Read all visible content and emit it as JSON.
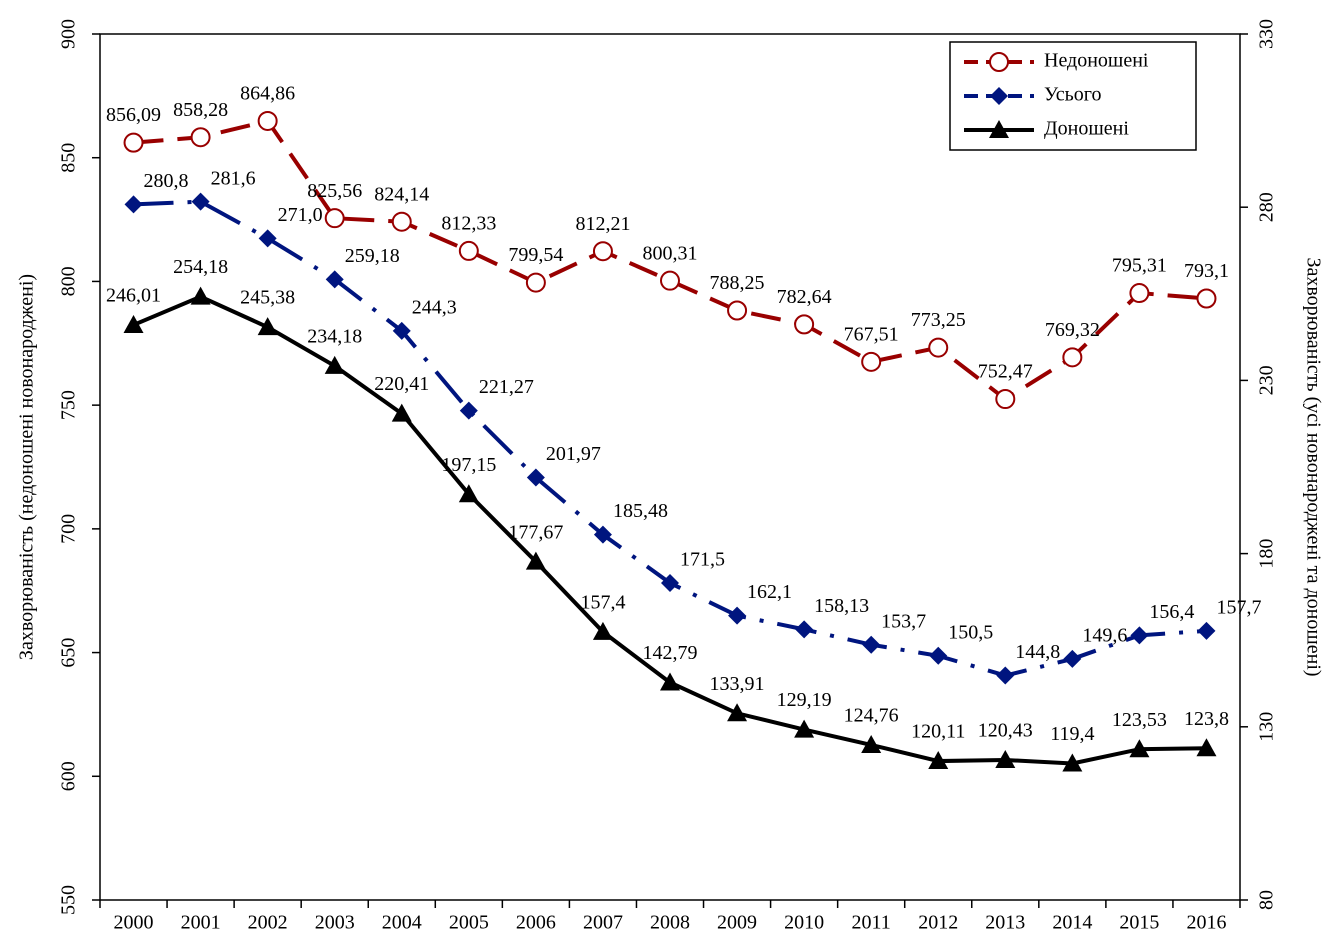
{
  "chart_data": {
    "type": "line",
    "categories": [
      "2000",
      "2001",
      "2002",
      "2003",
      "2004",
      "2005",
      "2006",
      "2007",
      "2008",
      "2009",
      "2010",
      "2011",
      "2012",
      "2013",
      "2014",
      "2015",
      "2016"
    ],
    "ylabel": "Захворюваність (недоношені новонароджені)",
    "y2label": "Захворюваність (усі новонароджені та доношені)",
    "ylim": [
      550,
      900
    ],
    "yticks": [
      550,
      600,
      650,
      700,
      750,
      800,
      850,
      900
    ],
    "y2lim": [
      80,
      330
    ],
    "y2ticks": [
      80,
      130,
      180,
      230,
      280,
      330
    ],
    "legend": "upper right",
    "series": [
      {
        "name": "Недоношені",
        "color": "#990000",
        "marker": "circle",
        "dash": "30,14",
        "values": [
          856.09,
          858.28,
          864.86,
          825.56,
          824.14,
          812.33,
          799.54,
          812.21,
          800.31,
          788.25,
          782.64,
          767.51,
          773.25,
          752.47,
          769.32,
          795.31,
          793.1
        ],
        "value_labels": [
          "856,09",
          "858,28",
          "864,86",
          "825,56",
          "824,14",
          "812,33",
          "799,54",
          "812,21",
          "800,31",
          "788,25",
          "782,64",
          "767,51",
          "773,25",
          "752,47",
          "769,32",
          "795,31",
          "793,1"
        ]
      },
      {
        "name": "Усього",
        "color": "#00157f",
        "marker": "diamond",
        "dash": "40,14,4,14",
        "axis": "y2",
        "values": [
          280.8,
          281.6,
          271.0,
          259.18,
          244.3,
          221.27,
          201.97,
          185.48,
          171.5,
          162.1,
          158.13,
          153.7,
          150.5,
          144.8,
          149.6,
          156.4,
          157.7
        ],
        "value_labels": [
          "280,8",
          "281,6",
          "271,0",
          "259,18",
          "244,3",
          "221,27",
          "201,97",
          "185,48",
          "171,5",
          "162,1",
          "158,13",
          "153,7",
          "150,5",
          "144,8",
          "149,6",
          "156,4",
          "157,7"
        ]
      },
      {
        "name": "Доношені",
        "color": "#000000",
        "marker": "triangle",
        "axis": "y2",
        "values": [
          246.01,
          254.18,
          245.38,
          234.18,
          220.41,
          197.15,
          177.67,
          157.4,
          142.79,
          133.91,
          129.19,
          124.76,
          120.11,
          120.43,
          119.4,
          123.53,
          123.8
        ],
        "value_labels": [
          "246,01",
          "254,18",
          "245,38",
          "234,18",
          "220,41",
          "197,15",
          "177,67",
          "157,4",
          "142,79",
          "133,91",
          "129,19",
          "124,76",
          "120,11",
          "120,43",
          "119,4",
          "123,53",
          "123,8"
        ]
      }
    ]
  }
}
